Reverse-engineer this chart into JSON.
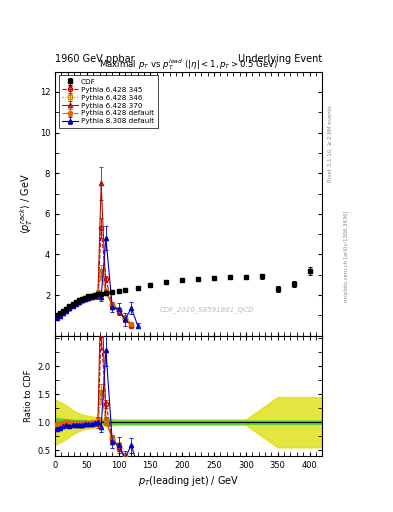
{
  "title_top": "1960 GeV ppbar",
  "title_top_right": "Underlying Event",
  "plot_title": "Maximal $p_T$ vs $p_T^{lead}$ ($|\\eta| < 1, p_T > 0.5$ GeV)",
  "xlabel": "$p_T$(leading jet) / GeV",
  "ylabel_main": "$\\langle p_T^{rack} \\rangle$ / GeV",
  "ylabel_ratio": "Ratio to CDF",
  "watermark": "CDF_2010_S8591881_QCD",
  "rivet_label": "Rivet 3.1.10, ≥ 2.8M events",
  "mcplots_label": "mcplots.cern.ch [arXiv:1306.3436]",
  "xlim": [
    0,
    420
  ],
  "ylim_main": [
    0,
    13
  ],
  "ylim_ratio": [
    0.4,
    2.55
  ],
  "yticks_main": [
    2,
    4,
    6,
    8,
    10,
    12
  ],
  "yticks_ratio": [
    0.5,
    1.0,
    1.5,
    2.0
  ],
  "cdf_x": [
    2.5,
    7.5,
    12.5,
    17.5,
    22.5,
    27.5,
    32.5,
    37.5,
    42.5,
    47.5,
    52.5,
    57.5,
    62.5,
    67.5,
    72.5,
    80,
    90,
    100,
    110,
    130,
    150,
    175,
    200,
    225,
    250,
    275,
    300,
    325,
    350,
    375,
    400
  ],
  "cdf_y": [
    1.0,
    1.1,
    1.2,
    1.3,
    1.45,
    1.55,
    1.65,
    1.75,
    1.82,
    1.88,
    1.94,
    1.97,
    2.0,
    2.04,
    2.07,
    2.1,
    2.15,
    2.2,
    2.25,
    2.35,
    2.5,
    2.65,
    2.75,
    2.8,
    2.85,
    2.9,
    2.9,
    2.92,
    2.3,
    2.55,
    3.2
  ],
  "cdf_yerr": [
    0.04,
    0.04,
    0.04,
    0.04,
    0.04,
    0.04,
    0.04,
    0.04,
    0.04,
    0.04,
    0.04,
    0.04,
    0.04,
    0.04,
    0.04,
    0.05,
    0.05,
    0.05,
    0.06,
    0.06,
    0.07,
    0.08,
    0.09,
    0.09,
    0.1,
    0.1,
    0.1,
    0.12,
    0.13,
    0.14,
    0.2
  ],
  "py_x": [
    2.5,
    7.5,
    12.5,
    17.5,
    22.5,
    27.5,
    32.5,
    37.5,
    42.5,
    47.5,
    52.5,
    57.5,
    62.5,
    67.5,
    72.5,
    80,
    90,
    100,
    110,
    120
  ],
  "py345_y": [
    0.95,
    1.05,
    1.15,
    1.28,
    1.38,
    1.5,
    1.6,
    1.68,
    1.75,
    1.82,
    1.88,
    1.93,
    1.97,
    2.05,
    5.3,
    2.8,
    1.5,
    1.2,
    0.8,
    0.5
  ],
  "py345_yerr": [
    0.03,
    0.03,
    0.03,
    0.03,
    0.03,
    0.03,
    0.03,
    0.04,
    0.04,
    0.04,
    0.04,
    0.05,
    0.05,
    0.15,
    0.5,
    0.15,
    0.1,
    0.15,
    0.15,
    0.1
  ],
  "py346_y": [
    0.95,
    1.06,
    1.17,
    1.3,
    1.4,
    1.52,
    1.62,
    1.7,
    1.77,
    1.84,
    1.9,
    1.94,
    1.98,
    2.06,
    3.0,
    2.2,
    1.55,
    1.25,
    0.85,
    0.55
  ],
  "py346_yerr": [
    0.03,
    0.03,
    0.03,
    0.03,
    0.03,
    0.03,
    0.03,
    0.04,
    0.04,
    0.04,
    0.04,
    0.05,
    0.05,
    0.1,
    0.25,
    0.1,
    0.09,
    0.14,
    0.14,
    0.1
  ],
  "py370_y": [
    0.93,
    1.04,
    1.14,
    1.26,
    1.37,
    1.49,
    1.59,
    1.67,
    1.74,
    1.81,
    1.87,
    1.92,
    1.96,
    2.03,
    7.5,
    2.15,
    1.52,
    1.22,
    0.82,
    0.52
  ],
  "py370_yerr": [
    0.03,
    0.03,
    0.03,
    0.03,
    0.03,
    0.03,
    0.03,
    0.04,
    0.04,
    0.04,
    0.04,
    0.05,
    0.05,
    0.2,
    0.8,
    0.15,
    0.1,
    0.15,
    0.14,
    0.1
  ],
  "py_def428_y": [
    0.97,
    1.07,
    1.18,
    1.31,
    1.42,
    1.54,
    1.63,
    1.71,
    1.79,
    1.85,
    1.91,
    1.96,
    2.0,
    2.07,
    3.2,
    2.12,
    1.58,
    1.28,
    0.88,
    0.58
  ],
  "py_def428_yerr": [
    0.03,
    0.03,
    0.03,
    0.03,
    0.03,
    0.03,
    0.03,
    0.04,
    0.04,
    0.04,
    0.04,
    0.05,
    0.05,
    0.12,
    0.28,
    0.11,
    0.09,
    0.14,
    0.14,
    0.1
  ],
  "py308_x": [
    2.5,
    7.5,
    12.5,
    17.5,
    22.5,
    27.5,
    32.5,
    37.5,
    42.5,
    47.5,
    52.5,
    57.5,
    62.5,
    67.5,
    72.5,
    80,
    90,
    100,
    110,
    120,
    130
  ],
  "py308_y": [
    0.88,
    0.99,
    1.11,
    1.23,
    1.35,
    1.47,
    1.57,
    1.66,
    1.74,
    1.81,
    1.87,
    1.92,
    1.96,
    2.03,
    1.9,
    4.8,
    1.4,
    1.3,
    0.8,
    1.35,
    0.5
  ],
  "py308_yerr": [
    0.03,
    0.03,
    0.03,
    0.03,
    0.03,
    0.03,
    0.03,
    0.04,
    0.04,
    0.04,
    0.04,
    0.05,
    0.05,
    0.08,
    0.2,
    0.6,
    0.25,
    0.3,
    0.3,
    0.3,
    0.1
  ],
  "color_345": "#cc0000",
  "color_346": "#bb8800",
  "color_370": "#aa1100",
  "color_def428": "#dd6600",
  "color_308": "#0000cc",
  "color_cdf": "#000000",
  "color_band_green": "#44cc44",
  "color_band_yellow": "#dddd00",
  "ratio_band_x": [
    0,
    5,
    10,
    15,
    20,
    25,
    30,
    35,
    40,
    45,
    50,
    60,
    70,
    80,
    100,
    130,
    160,
    200,
    250,
    300,
    350,
    380,
    420
  ],
  "ratio_band_green_lo": [
    0.93,
    0.93,
    0.94,
    0.94,
    0.95,
    0.95,
    0.96,
    0.96,
    0.96,
    0.96,
    0.97,
    0.97,
    0.97,
    0.97,
    0.97,
    0.97,
    0.97,
    0.97,
    0.97,
    0.97,
    0.97,
    0.97,
    0.97
  ],
  "ratio_band_green_hi": [
    1.07,
    1.07,
    1.06,
    1.06,
    1.05,
    1.05,
    1.04,
    1.04,
    1.04,
    1.04,
    1.03,
    1.03,
    1.03,
    1.03,
    1.03,
    1.03,
    1.03,
    1.03,
    1.03,
    1.03,
    1.03,
    1.03,
    1.03
  ],
  "ratio_band_yellow_lo": [
    0.6,
    0.62,
    0.65,
    0.68,
    0.72,
    0.76,
    0.8,
    0.83,
    0.85,
    0.87,
    0.88,
    0.9,
    0.92,
    0.93,
    0.95,
    0.95,
    0.95,
    0.95,
    0.95,
    0.95,
    0.55,
    0.55,
    0.55
  ],
  "ratio_band_yellow_hi": [
    1.4,
    1.38,
    1.35,
    1.32,
    1.28,
    1.24,
    1.2,
    1.17,
    1.15,
    1.13,
    1.12,
    1.1,
    1.08,
    1.07,
    1.05,
    1.05,
    1.05,
    1.05,
    1.05,
    1.05,
    1.45,
    1.45,
    1.45
  ]
}
